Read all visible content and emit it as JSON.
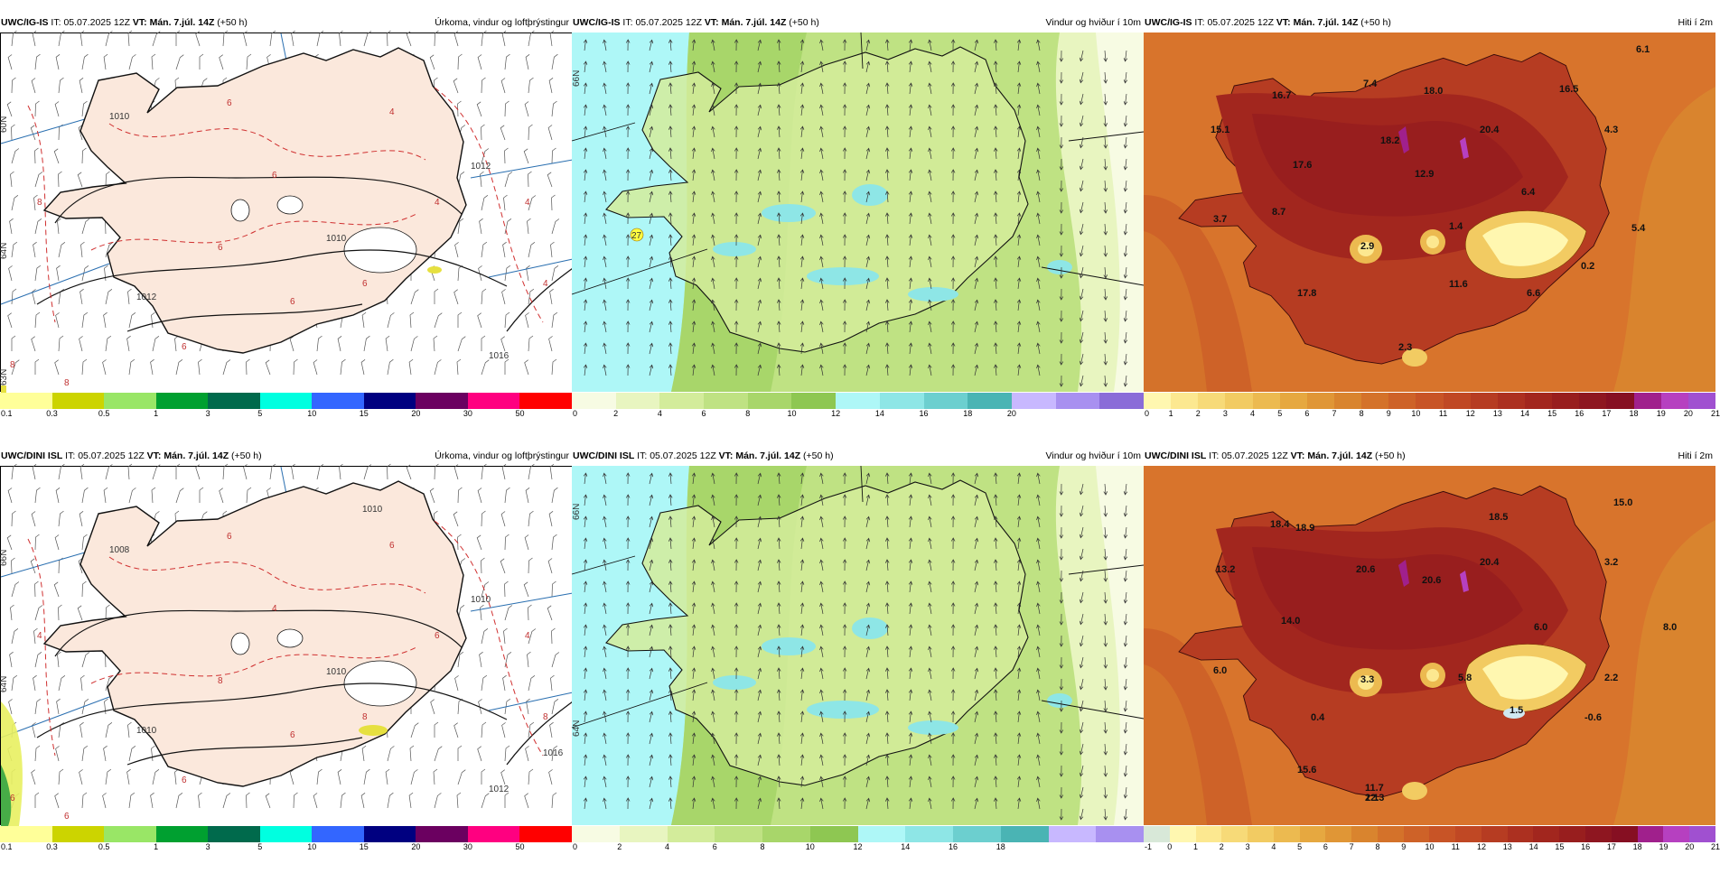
{
  "panels": [
    {
      "id": "ig-precip",
      "model": "UWC/IG-IS",
      "it_label": "IT:",
      "it_value": "05.07.2025 12Z",
      "vt_label": "VT:",
      "vt_value": "Mán. 7.júl. 14Z",
      "lead": "(+50 h)",
      "title": "Úrkoma, vindur og loftþrýstingur",
      "type": "precip",
      "colors": [
        "#ffff99",
        "#ccd400",
        "#99e666",
        "#00a030",
        "#006a4c",
        "#00ffe0",
        "#3366ff",
        "#000080",
        "#6b0060",
        "#ff0080",
        "#ff0000"
      ],
      "ticks": [
        "0.1",
        "0.3",
        "0.5",
        "1",
        "3",
        "5",
        "10",
        "15",
        "20",
        "30",
        "50"
      ],
      "map_labels": {
        "contours": [
          "1012",
          "1010",
          "1010",
          "1012",
          "1016"
        ],
        "red": [
          "6",
          "6",
          "4",
          "6",
          "6",
          "6",
          "4",
          "8",
          "8",
          "6",
          "4",
          "4",
          "8"
        ],
        "side": [
          "60N",
          "64N",
          "63N"
        ]
      }
    },
    {
      "id": "ig-wind",
      "model": "UWC/IG-IS",
      "it_label": "IT:",
      "it_value": "05.07.2025 12Z",
      "vt_label": "VT:",
      "vt_value": "Mán. 7.júl. 14Z",
      "lead": "(+50 h)",
      "title": "Vindur og hviður í 10m",
      "type": "wind",
      "colors": [
        "#f7fbe3",
        "#e8f5c0",
        "#d3ec9b",
        "#bfe283",
        "#a8d66a",
        "#8ec752",
        "#aef7f7",
        "#8ee6e6",
        "#6ccfcf",
        "#4ab4b4",
        "#c8b8ff",
        "#a890f0",
        "#8a6cd8"
      ],
      "ticks": [
        "0",
        "2",
        "4",
        "6",
        "8",
        "10",
        "12",
        "14",
        "16",
        "18",
        "20"
      ],
      "map_labels": {
        "gust": "27",
        "side": [
          "66N"
        ]
      }
    },
    {
      "id": "ig-temp",
      "model": "UWC/IG-IS",
      "it_label": "IT:",
      "it_value": "05.07.2025 12Z",
      "vt_label": "VT:",
      "vt_value": "Mán. 7.júl. 14Z",
      "lead": "(+50 h)",
      "title": "Hiti í 2m",
      "type": "temp",
      "colors": [
        "#fff7b0",
        "#fce890",
        "#f7da78",
        "#f2cb62",
        "#ecba50",
        "#e6a840",
        "#e09636",
        "#d9842e",
        "#d4722a",
        "#ce6228",
        "#c85426",
        "#c04824",
        "#b63c22",
        "#ac3020",
        "#a2261e",
        "#981e1e",
        "#8e1620",
        "#860f22",
        "#a0208c",
        "#b640c0",
        "#a050d0"
      ],
      "ticks": [
        "0",
        "1",
        "2",
        "3",
        "4",
        "5",
        "6",
        "7",
        "8",
        "9",
        "10",
        "11",
        "12",
        "13",
        "14",
        "15",
        "16",
        "17",
        "18",
        "19",
        "20",
        "21"
      ],
      "map_labels": {
        "values": [
          "6.1",
          "7.4",
          "16.7",
          "18.0",
          "16.5",
          "15.1",
          "18.2",
          "20.4",
          "4.3",
          "17.6",
          "12.9",
          "6.4",
          "3.7",
          "8.7",
          "1.4",
          "5.4",
          "2.9",
          "0.2",
          "11.6",
          "6.6",
          "17.8",
          "2.3"
        ]
      }
    },
    {
      "id": "dini-precip",
      "model": "UWC/DINI ISL",
      "it_label": "IT:",
      "it_value": "05.07.2025 12Z",
      "vt_label": "VT:",
      "vt_value": "Mán. 7.júl. 14Z",
      "lead": "(+50 h)",
      "title": "Úrkoma, vindur og loftþrýstingur",
      "type": "precip",
      "colors": [
        "#ffff99",
        "#ccd400",
        "#99e666",
        "#00a030",
        "#006a4c",
        "#00ffe0",
        "#3366ff",
        "#000080",
        "#6b0060",
        "#ff0080",
        "#ff0000"
      ],
      "ticks": [
        "0.1",
        "0.3",
        "0.5",
        "1",
        "3",
        "5",
        "10",
        "15",
        "20",
        "30",
        "50"
      ],
      "map_labels": {
        "contours": [
          "1010",
          "1008",
          "1010",
          "1010",
          "1012",
          "1016",
          "1010"
        ],
        "red": [
          "6",
          "4",
          "6",
          "8",
          "6",
          "8",
          "6",
          "4",
          "6",
          "6",
          "4",
          "8",
          "6"
        ],
        "side": [
          "66N",
          "64N"
        ]
      }
    },
    {
      "id": "dini-wind",
      "model": "UWC/DINI ISL",
      "it_label": "IT:",
      "it_value": "05.07.2025 12Z",
      "vt_label": "VT:",
      "vt_value": "Mán. 7.júl. 14Z",
      "lead": "(+50 h)",
      "title": "Vindur og hviður í 10m",
      "type": "wind",
      "colors": [
        "#f7fbe3",
        "#e8f5c0",
        "#d3ec9b",
        "#bfe283",
        "#a8d66a",
        "#8ec752",
        "#aef7f7",
        "#8ee6e6",
        "#6ccfcf",
        "#4ab4b4",
        "#c8b8ff",
        "#a890f0"
      ],
      "ticks": [
        "0",
        "2",
        "4",
        "6",
        "8",
        "10",
        "12",
        "14",
        "16",
        "18"
      ],
      "map_labels": {
        "side": [
          "66N",
          "64N"
        ]
      }
    },
    {
      "id": "dini-temp",
      "model": "UWC/DINI ISL",
      "it_label": "IT:",
      "it_value": "05.07.2025 12Z",
      "vt_label": "VT:",
      "vt_value": "Mán. 7.júl. 14Z",
      "lead": "(+50 h)",
      "title": "Hiti í 2m",
      "type": "temp",
      "colors": [
        "#d8e8d8",
        "#fff7b0",
        "#fce890",
        "#f7da78",
        "#f2cb62",
        "#ecba50",
        "#e6a840",
        "#e09636",
        "#d9842e",
        "#d4722a",
        "#ce6228",
        "#c85426",
        "#c04824",
        "#b63c22",
        "#ac3020",
        "#a2261e",
        "#981e1e",
        "#8e1620",
        "#860f22",
        "#a0208c",
        "#b640c0",
        "#a050d0"
      ],
      "ticks": [
        "-1",
        "0",
        "1",
        "2",
        "3",
        "4",
        "5",
        "6",
        "7",
        "8",
        "9",
        "10",
        "11",
        "12",
        "13",
        "14",
        "15",
        "16",
        "17",
        "18",
        "19",
        "20",
        "21"
      ],
      "map_labels": {
        "values": [
          "15.0",
          "18.4",
          "18.9",
          "18.5",
          "13.2",
          "20.6",
          "20.6",
          "20.4",
          "3.2",
          "6.0",
          "8.0",
          "14.0",
          "6.0",
          "3.3",
          "5.8",
          "2.2",
          "1.5",
          "-0.6",
          "0.4",
          "15.6",
          "11.7",
          "2.1",
          "12.3"
        ]
      }
    }
  ]
}
